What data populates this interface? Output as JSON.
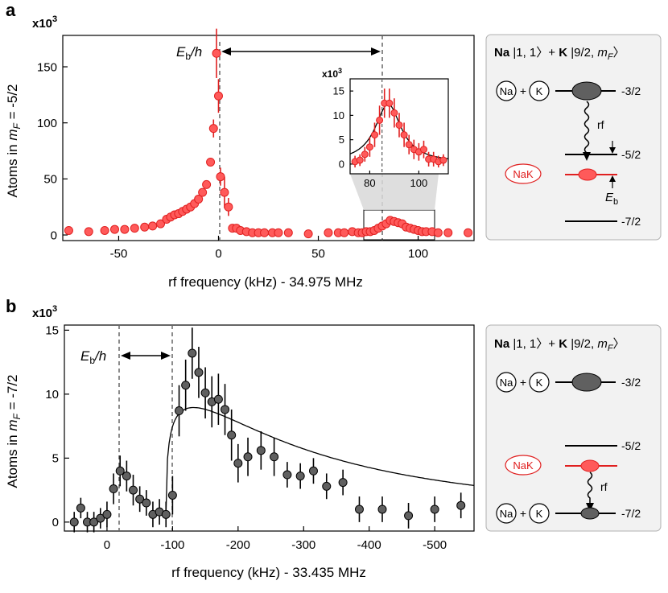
{
  "panels": {
    "a": {
      "letter": "a",
      "multiplier": "x10",
      "exponent": "3",
      "ylabel_pre": "Atoms in ",
      "ylabel_m": "m",
      "ylabel_sub": "F",
      "ylabel_post": " = -5/2",
      "xlabel": "rf frequency (kHz) - 34.975 MHz",
      "eb_E": "E",
      "eb_sub": "b",
      "eb_rest": "/h"
    },
    "b": {
      "letter": "b",
      "multiplier": "x10",
      "exponent": "3",
      "ylabel_pre": "Atoms in ",
      "ylabel_m": "m",
      "ylabel_sub": "F",
      "ylabel_post": " = -7/2",
      "xlabel": "rf frequency (kHz) - 33.435 MHz",
      "eb_E": "E",
      "eb_sub": "b",
      "eb_rest": "/h"
    }
  },
  "inset": {
    "multiplier": "x10",
    "exponent": "3"
  },
  "diagrams": {
    "a": {
      "title_na": "Na",
      "title_na_state": " |1, 1〉+ ",
      "title_k": "K",
      "title_k_state": " |9/2, ",
      "title_m": "m",
      "title_sub": "F",
      "title_end": "〉",
      "na": "Na",
      "plus": "+",
      "k": "K",
      "nak": "NaK",
      "rf": "rf",
      "level_top": "-3/2",
      "level_mid": "-5/2",
      "level_bot": "-7/2",
      "eb_E": "E",
      "eb_sub": "b"
    },
    "b": {
      "title_na": "Na",
      "title_na_state": " |1, 1〉+ ",
      "title_k": "K",
      "title_k_state": " |9/2, ",
      "title_m": "m",
      "title_sub": "F",
      "title_end": "〉",
      "na": "Na",
      "plus": "+",
      "k": "K",
      "nak": "NaK",
      "rf": "rf",
      "level_top": "-3/2",
      "level_mid": "-5/2",
      "level_bot": "-7/2"
    }
  },
  "colors": {
    "red_fill": "#ff5a5a",
    "red_edge": "#e02020",
    "gray_fill": "#606060",
    "line": "#000000",
    "dash": "#666666",
    "box": "#f2f2f2"
  },
  "chart_data": [
    {
      "type": "scatter",
      "panel": "a",
      "title": "",
      "xlabel": "rf frequency (kHz) - 34.975 MHz",
      "ylabel": "Atoms in mF = -5/2 (x10^3)",
      "xlim": [
        -78,
        128
      ],
      "ylim": [
        -5,
        178
      ],
      "xticks": [
        -50,
        0,
        50,
        100
      ],
      "yticks": [
        0,
        50,
        100,
        150
      ],
      "xticklabels": [
        "-50",
        "0",
        "50",
        "100"
      ],
      "yticklabels": [
        "0",
        "50",
        "100",
        "150"
      ],
      "vlines": [
        0,
        85
      ],
      "x": [
        -75,
        -65,
        -57,
        -52,
        -47,
        -42,
        -37,
        -33,
        -29,
        -26,
        -24,
        -22,
        -20,
        -18,
        -16,
        -14,
        -12,
        -10,
        -8,
        -6,
        -4,
        -2.5,
        -1,
        0,
        1,
        3,
        5,
        7,
        9,
        11,
        14,
        17,
        20,
        23,
        27,
        30,
        35,
        45,
        55,
        60,
        63,
        67,
        70,
        72,
        74,
        76,
        78,
        80,
        82,
        84,
        86,
        88,
        90,
        92,
        94,
        96,
        98,
        100,
        102,
        104,
        107,
        110,
        115,
        125
      ],
      "y": [
        4,
        3,
        4,
        5,
        5,
        6,
        7,
        8,
        10,
        14,
        16,
        18,
        19,
        21,
        23,
        25,
        28,
        32,
        38,
        45,
        65,
        95,
        162,
        124,
        52,
        38,
        25,
        6,
        6,
        4,
        3,
        2,
        2,
        2,
        2,
        2,
        2,
        1,
        2,
        2,
        2,
        3,
        2,
        2,
        3,
        3,
        4,
        6,
        8,
        10,
        13,
        12,
        11,
        10,
        7,
        6,
        5,
        4,
        3,
        3,
        3,
        2,
        2,
        2
      ],
      "err": [
        0,
        0,
        0,
        0,
        0,
        0,
        0,
        0,
        0,
        0,
        0,
        0,
        0,
        0,
        0,
        0,
        0,
        0,
        0,
        0,
        0,
        8,
        22,
        15,
        8,
        14,
        8,
        2,
        2,
        2,
        1,
        1,
        1,
        1,
        1,
        1,
        1,
        1,
        1,
        1,
        1,
        1,
        1,
        1,
        1,
        1,
        2,
        2,
        2,
        3,
        3,
        3,
        3,
        3,
        2,
        2,
        2,
        2,
        1,
        1,
        1,
        1,
        1,
        1
      ]
    },
    {
      "type": "line",
      "panel": "a-inset",
      "title": "",
      "xlim": [
        72,
        112
      ],
      "ylim": [
        -2,
        17.5
      ],
      "xticks": [
        80,
        100
      ],
      "yticks": [
        0,
        5,
        10,
        15
      ],
      "xticklabels": [
        "80",
        "100"
      ],
      "yticklabels": [
        "0",
        "5",
        "10",
        "15"
      ],
      "vline": 85,
      "x": [
        74,
        76,
        78,
        80,
        82,
        84,
        86,
        88,
        90,
        92,
        94,
        96,
        98,
        100,
        102,
        104,
        106,
        108,
        110
      ],
      "y": [
        0.5,
        0.8,
        2,
        3.5,
        6,
        9,
        12.5,
        12.5,
        10.5,
        8,
        6,
        4,
        3,
        2.5,
        3,
        1,
        1,
        0.5,
        0.8
      ],
      "err": [
        1.2,
        1.2,
        1.5,
        2,
        2.5,
        3,
        3,
        3,
        3,
        2.5,
        2.5,
        2,
        2,
        1.8,
        1.8,
        1.5,
        1.5,
        1.2,
        1.2
      ],
      "fit": {
        "model": "lorentzian",
        "center": 87.5,
        "gamma": 6.5,
        "amplitude": 12,
        "offset": 0.3
      }
    },
    {
      "type": "scatter",
      "panel": "b",
      "title": "",
      "xlabel": "rf frequency (kHz) - 33.435 MHz",
      "ylabel": "Atoms in mF = -7/2 (x10^3)",
      "xlim": [
        65,
        -560
      ],
      "ylim": [
        -0.7,
        15.4
      ],
      "xticks": [
        0,
        -100,
        -200,
        -300,
        -400,
        -500
      ],
      "yticks": [
        0,
        5,
        10,
        15
      ],
      "xticklabels": [
        "0",
        "-100",
        "-200",
        "-300",
        "-400",
        "-500"
      ],
      "yticklabels": [
        "0",
        "5",
        "10",
        "15"
      ],
      "vlines": [
        0,
        -90
      ],
      "x": [
        50,
        40,
        30,
        20,
        10,
        0,
        -10,
        -20,
        -30,
        -40,
        -50,
        -60,
        -70,
        -80,
        -90,
        -100,
        -110,
        -120,
        -130,
        -140,
        -150,
        -160,
        -170,
        -180,
        -190,
        -200,
        -215,
        -235,
        -255,
        -275,
        -295,
        -315,
        -335,
        -360,
        -385,
        -420,
        -460,
        -500,
        -540
      ],
      "y": [
        0,
        1.1,
        0,
        0,
        0.3,
        0.6,
        2.6,
        4,
        3.6,
        2.5,
        1.8,
        1.5,
        0.6,
        0.8,
        0.6,
        2.1,
        8.7,
        10.7,
        13.2,
        11.7,
        10.1,
        9.4,
        9.6,
        8.8,
        6.8,
        4.6,
        5.1,
        5.6,
        5.1,
        3.7,
        3.6,
        4,
        2.8,
        3.1,
        1,
        1,
        0.5,
        1,
        1.3
      ],
      "err": [
        0.8,
        0.8,
        0.8,
        0.8,
        0.8,
        1,
        1.2,
        1.2,
        1.2,
        1.2,
        1,
        1,
        1,
        1,
        1,
        1.5,
        2,
        2,
        2,
        2,
        2,
        2,
        2,
        2,
        2,
        1.5,
        1.5,
        1.5,
        1.5,
        1,
        1,
        1,
        1,
        1,
        1,
        1,
        1,
        1,
        1
      ],
      "fit": {
        "model": "threshold",
        "threshold": -90
      }
    }
  ]
}
